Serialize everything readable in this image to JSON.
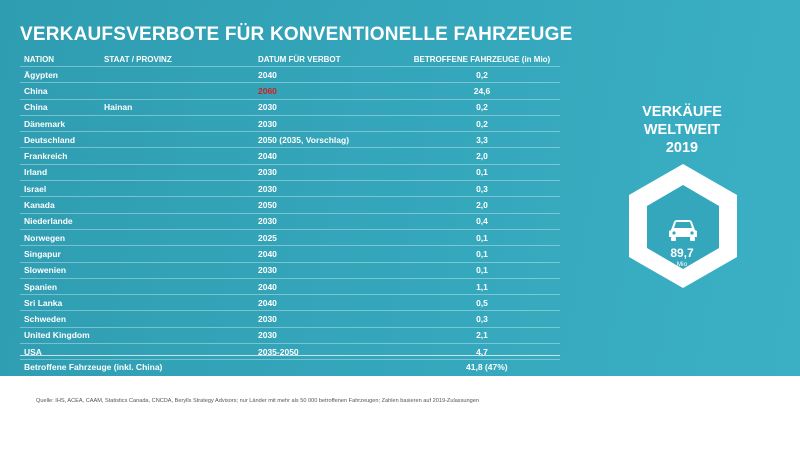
{
  "title": "VERKAUFSVERBOTE FÜR KONVENTIONELLE FAHRZEUGE",
  "columns": [
    "NATION",
    "STAAT / PROVINZ",
    "DATUM FÜR VERBOT",
    "BETROFFENE FAHRZEUGE (in Mio)"
  ],
  "rows": [
    {
      "nation": "Ägypten",
      "region": "",
      "date": "2040",
      "vehicles": "0,2"
    },
    {
      "nation": "China",
      "region": "",
      "date": "2060",
      "vehicles": "24,6"
    },
    {
      "nation": "China",
      "region": "Hainan",
      "date": "2030",
      "vehicles": "0,2"
    },
    {
      "nation": "Dänemark",
      "region": "",
      "date": "2030",
      "vehicles": "0,2"
    },
    {
      "nation": "Deutschland",
      "region": "",
      "date": "2050 (2035, Vorschlag)",
      "vehicles": "3,3"
    },
    {
      "nation": "Frankreich",
      "region": "",
      "date": "2040",
      "vehicles": "2,0"
    },
    {
      "nation": "Irland",
      "region": "",
      "date": "2030",
      "vehicles": "0,1"
    },
    {
      "nation": "Israel",
      "region": "",
      "date": "2030",
      "vehicles": "0,3"
    },
    {
      "nation": "Kanada",
      "region": "",
      "date": "2050",
      "vehicles": "2,0"
    },
    {
      "nation": "Niederlande",
      "region": "",
      "date": "2030",
      "vehicles": "0,4"
    },
    {
      "nation": "Norwegen",
      "region": "",
      "date": "2025",
      "vehicles": "0,1"
    },
    {
      "nation": "Singapur",
      "region": "",
      "date": "2040",
      "vehicles": "0,1"
    },
    {
      "nation": "Slowenien",
      "region": "",
      "date": "2030",
      "vehicles": "0,1"
    },
    {
      "nation": "Spanien",
      "region": "",
      "date": "2040",
      "vehicles": "1,1"
    },
    {
      "nation": "Sri Lanka",
      "region": "",
      "date": "2040",
      "vehicles": "0,5"
    },
    {
      "nation": "Schweden",
      "region": "",
      "date": "2030",
      "vehicles": "0,3"
    },
    {
      "nation": "United Kingdom",
      "region": "",
      "date": "2030",
      "vehicles": "2,1"
    },
    {
      "nation": "USA",
      "region": "",
      "date": "2035-2050",
      "vehicles": "4,7"
    }
  ],
  "highlight_color": "#d21f1f",
  "highlighted_row_date": 1,
  "total": {
    "label": "Betroffene Fahrzeuge (inkl. China)",
    "value": "41,8  (47%)"
  },
  "panel": {
    "title_lines": [
      "VERKÄUFE",
      "WELTWEIT",
      "2019"
    ],
    "icon": "car-icon",
    "value": "89,7",
    "unit": "Mio"
  },
  "footer": "Quelle: IHS, ACEA, CAAM, Statistics Canada, CNCDA, Berylls Strategy Advisors; nur Länder mit mehr als 50 000 betroffenen Fahrzeugen; Zahlen basieren auf 2019-Zulassungen",
  "colors": {
    "background": "#35a7bc",
    "text": "#ffffff"
  }
}
